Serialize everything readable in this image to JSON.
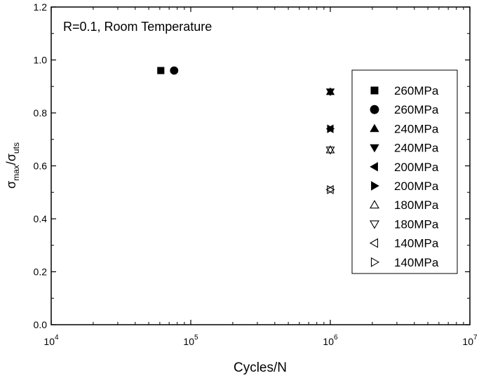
{
  "chart_data": {
    "type": "scatter",
    "annotation": "R=0.1, Room Temperature",
    "xlabel": "Cycles/N",
    "ylabel_parts": {
      "base": "σ",
      "num_sub": "max",
      "slash": "/",
      "den_base": "σ",
      "den_sub": "uts"
    },
    "xscale": "log",
    "xlim": [
      10000,
      10000000
    ],
    "ylim": [
      0.0,
      1.2
    ],
    "x_ticks": [
      {
        "base": "10",
        "exp": "4",
        "value": 10000
      },
      {
        "base": "10",
        "exp": "5",
        "value": 100000
      },
      {
        "base": "10",
        "exp": "6",
        "value": 1000000
      },
      {
        "base": "10",
        "exp": "7",
        "value": 10000000
      }
    ],
    "y_ticks": [
      "0.0",
      "0.2",
      "0.4",
      "0.6",
      "0.8",
      "1.0",
      "1.2"
    ],
    "legend_position": "right",
    "series": [
      {
        "name": "260MPa",
        "marker": "square",
        "filled": true,
        "points": [
          [
            61000,
            0.96
          ]
        ]
      },
      {
        "name": "260MPa",
        "marker": "circle",
        "filled": true,
        "points": [
          [
            76000,
            0.96
          ]
        ]
      },
      {
        "name": "240MPa",
        "marker": "triangle-up",
        "filled": true,
        "points": [
          [
            1000000,
            0.88
          ]
        ]
      },
      {
        "name": "240MPa",
        "marker": "triangle-down",
        "filled": true,
        "points": [
          [
            1000000,
            0.88
          ]
        ]
      },
      {
        "name": "200MPa",
        "marker": "triangle-left",
        "filled": true,
        "points": [
          [
            1000000,
            0.74
          ]
        ]
      },
      {
        "name": "200MPa",
        "marker": "triangle-right",
        "filled": true,
        "points": [
          [
            1000000,
            0.74
          ]
        ]
      },
      {
        "name": "180MPa",
        "marker": "triangle-up",
        "filled": false,
        "points": [
          [
            1000000,
            0.66
          ]
        ]
      },
      {
        "name": "180MPa",
        "marker": "triangle-down",
        "filled": false,
        "points": [
          [
            1000000,
            0.66
          ]
        ]
      },
      {
        "name": "140MPa",
        "marker": "triangle-left",
        "filled": false,
        "points": [
          [
            1000000,
            0.51
          ]
        ]
      },
      {
        "name": "140MPa",
        "marker": "triangle-right",
        "filled": false,
        "points": [
          [
            1000000,
            0.51
          ]
        ]
      }
    ]
  }
}
